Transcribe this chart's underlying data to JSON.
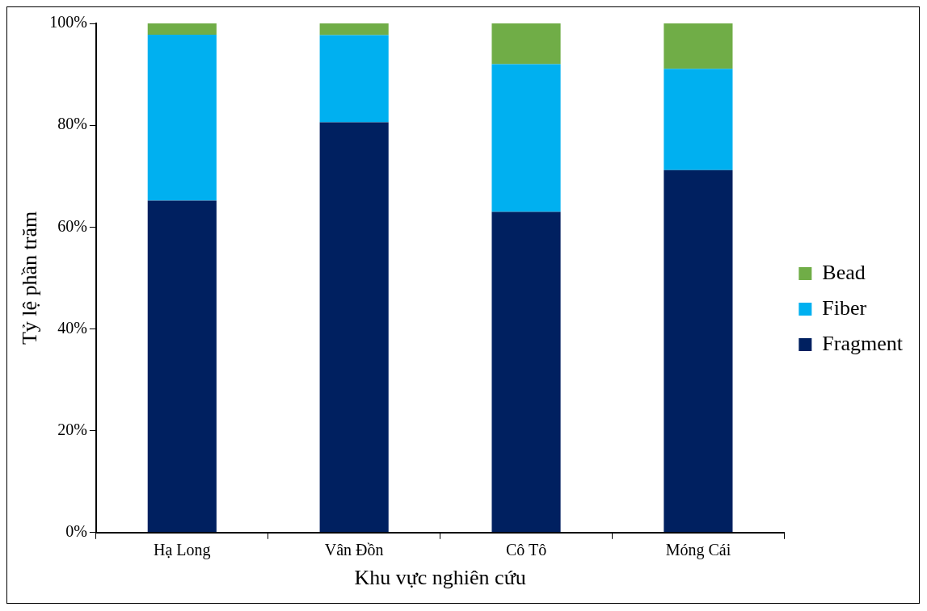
{
  "chart_data": {
    "type": "bar",
    "stacked": true,
    "xlabel": "Khu vực nghiên cứu",
    "ylabel": "Tỷ lệ phần trăm",
    "categories": [
      "Hạ Long",
      "Vân Đồn",
      "Cô Tô",
      "Móng Cái"
    ],
    "series": [
      {
        "name": "Fragment",
        "color": "#002060",
        "values": [
          65.2,
          80.6,
          63.0,
          71.2
        ]
      },
      {
        "name": "Fiber",
        "color": "#00b0f0",
        "values": [
          32.6,
          17.1,
          29.0,
          19.9
        ]
      },
      {
        "name": "Bead",
        "color": "#70ad47",
        "values": [
          2.2,
          2.3,
          8.0,
          8.9
        ]
      }
    ],
    "ylim": [
      0,
      100
    ],
    "yticks": [
      {
        "value": 0,
        "label": "0%"
      },
      {
        "value": 20,
        "label": "20%"
      },
      {
        "value": 40,
        "label": "40%"
      },
      {
        "value": 60,
        "label": "60%"
      },
      {
        "value": 80,
        "label": "80%"
      },
      {
        "value": 100,
        "label": "100%"
      }
    ],
    "grid": false,
    "legend": "right"
  }
}
